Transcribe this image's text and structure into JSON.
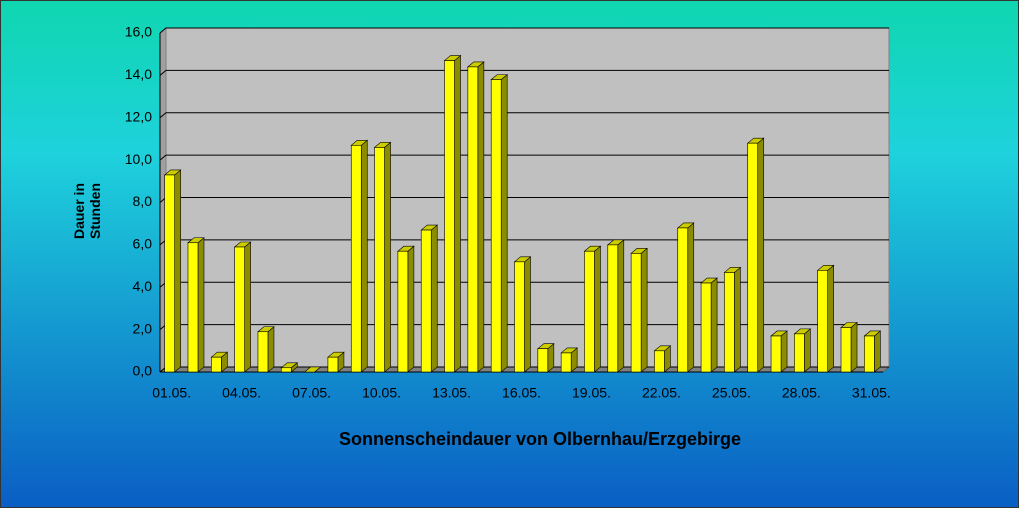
{
  "chart_data": {
    "type": "bar3d",
    "title": "Sonnenscheindauer von Olbernhau/Erzgebirge",
    "y_label": "Dauer in Stunden",
    "categories": [
      "01.05.",
      null,
      null,
      "04.05.",
      null,
      null,
      "07.05.",
      null,
      null,
      "10.05.",
      null,
      null,
      "13.05.",
      null,
      null,
      "16.05.",
      null,
      null,
      "19.05.",
      null,
      null,
      "22.05.",
      null,
      null,
      "25.05.",
      null,
      null,
      "28.05.",
      null,
      null,
      "31.05."
    ],
    "values": [
      9.3,
      6.1,
      0.7,
      5.9,
      1.9,
      0.2,
      0,
      0.7,
      10.7,
      10.6,
      5.7,
      6.7,
      14.7,
      14.4,
      13.8,
      5.2,
      1.1,
      0.9,
      5.7,
      6.0,
      5.6,
      1.0,
      6.8,
      4.2,
      4.7,
      10.8,
      1.7,
      1.8,
      4.8,
      2.1,
      1.7
    ],
    "color": "#ffff00",
    "ylim": [
      0,
      16
    ],
    "yticks": [
      {
        "value": 0,
        "label": "0,0"
      },
      {
        "value": 2,
        "label": "2,0"
      },
      {
        "value": 4,
        "label": "4,0"
      },
      {
        "value": 6,
        "label": "6,0"
      },
      {
        "value": 8,
        "label": "8,0"
      },
      {
        "value": 10,
        "label": "10,0"
      },
      {
        "value": 12,
        "label": "12,0"
      },
      {
        "value": 14,
        "label": "14,0"
      },
      {
        "value": 16,
        "label": "16,0"
      }
    ],
    "grid": true
  }
}
